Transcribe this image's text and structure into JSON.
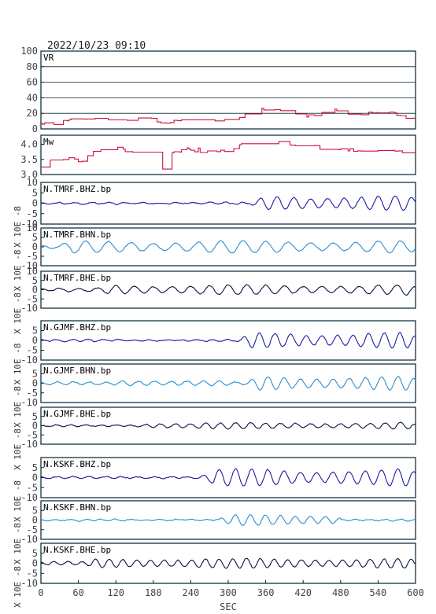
{
  "header": {
    "timestamp": "2022/10/23 09:10"
  },
  "chart_data": {
    "type": "line",
    "xlabel": "SEC",
    "x_ticks": [
      "0",
      "60",
      "120",
      "180",
      "240",
      "300",
      "360",
      "420",
      "480",
      "540",
      "600"
    ],
    "xlim": [
      0,
      600
    ],
    "y_unit_label": "X 10E -8",
    "colors": {
      "summary": "#cc1144",
      "bhz": "#1a1aa0",
      "bhn": "#2a8fd0",
      "bhe": "#101040",
      "frame": "#002233"
    },
    "panels": [
      {
        "name": "VR",
        "kind": "summary",
        "color": "#cc1144",
        "ylim": [
          0,
          100
        ],
        "y_ticks": [
          "100",
          "80",
          "60",
          "40",
          "20",
          "0"
        ],
        "grid": true,
        "series_points": [
          [
            0,
            7
          ],
          [
            20,
            7
          ],
          [
            40,
            12
          ],
          [
            70,
            14
          ],
          [
            100,
            13
          ],
          [
            130,
            11
          ],
          [
            150,
            12
          ],
          [
            175,
            13
          ],
          [
            200,
            8
          ],
          [
            220,
            12
          ],
          [
            260,
            13
          ],
          [
            290,
            11
          ],
          [
            320,
            16
          ],
          [
            345,
            21
          ],
          [
            360,
            27
          ],
          [
            380,
            24
          ],
          [
            400,
            18
          ],
          [
            430,
            17
          ],
          [
            460,
            21
          ],
          [
            470,
            24
          ],
          [
            500,
            19
          ],
          [
            540,
            21
          ],
          [
            560,
            22
          ],
          [
            580,
            16
          ],
          [
            600,
            13
          ]
        ],
        "noise": 2.0
      },
      {
        "name": "Mw",
        "kind": "summary",
        "color": "#cc1144",
        "ylim": [
          3.0,
          4.3
        ],
        "y_ticks": [
          "4.0",
          "3.5",
          "3.0"
        ],
        "grid": false,
        "series_points": [
          [
            0,
            3.25
          ],
          [
            10,
            3.5
          ],
          [
            30,
            3.55
          ],
          [
            60,
            3.45
          ],
          [
            90,
            3.75
          ],
          [
            120,
            3.85
          ],
          [
            150,
            3.8
          ],
          [
            180,
            3.7
          ],
          [
            195,
            3.2
          ],
          [
            200,
            3.65
          ],
          [
            230,
            3.8
          ],
          [
            260,
            3.8
          ],
          [
            290,
            3.8
          ],
          [
            320,
            3.95
          ],
          [
            345,
            4.05
          ],
          [
            360,
            4.15
          ],
          [
            390,
            4.0
          ],
          [
            420,
            3.95
          ],
          [
            460,
            3.85
          ],
          [
            500,
            3.85
          ],
          [
            540,
            3.75
          ],
          [
            570,
            3.75
          ],
          [
            600,
            3.55
          ]
        ],
        "noise": 0.08
      },
      {
        "name": "N.TMRF.BHZ.bp",
        "kind": "wave",
        "color": "#1a1aa0",
        "ylim": [
          -10,
          10
        ],
        "y_ticks": [
          "10",
          "5",
          "0",
          "-5",
          "-10"
        ],
        "seed": 11,
        "noise_amp": 0.4,
        "period": 27,
        "bursts": [
          [
            330,
            600,
            3.5
          ]
        ]
      },
      {
        "name": "N.TMRF.BHN.bp",
        "kind": "wave",
        "color": "#2a8fd0",
        "ylim": [
          -10,
          10
        ],
        "y_ticks": [
          "10",
          "5",
          "0",
          "-5",
          "-10"
        ],
        "seed": 22,
        "noise_amp": 1.0,
        "period": 36,
        "bursts": [
          [
            20,
            600,
            3.2
          ],
          [
            60,
            140,
            2.5
          ]
        ]
      },
      {
        "name": "N.TMRF.BHE.bp",
        "kind": "wave",
        "color": "#101040",
        "ylim": [
          -10,
          10
        ],
        "y_ticks": [
          "10",
          "5",
          "0",
          "-5",
          "-10"
        ],
        "seed": 33,
        "noise_amp": 0.8,
        "period": 30,
        "bursts": [
          [
            80,
            600,
            2.6
          ],
          [
            430,
            520,
            1.5
          ]
        ]
      },
      {
        "name": "N.GJMF.BHZ.bp",
        "kind": "wave",
        "color": "#1a1aa0",
        "ylim": [
          -10,
          10
        ],
        "y_ticks": [
          "5",
          "0",
          "-5",
          "-10"
        ],
        "seed": 44,
        "noise_amp": 0.5,
        "period": 25,
        "bursts": [
          [
            310,
            600,
            4.0
          ]
        ]
      },
      {
        "name": "N.GJMF.BHN.bp",
        "kind": "wave",
        "color": "#2a8fd0",
        "ylim": [
          -10,
          10
        ],
        "y_ticks": [
          "5",
          "0",
          "-5",
          "-10"
        ],
        "seed": 55,
        "noise_amp": 0.7,
        "period": 26,
        "bursts": [
          [
            100,
            300,
            1.5
          ],
          [
            320,
            600,
            3.6
          ]
        ]
      },
      {
        "name": "N.GJMF.BHE.bp",
        "kind": "wave",
        "color": "#101040",
        "ylim": [
          -10,
          10
        ],
        "y_ticks": [
          "5",
          "0",
          "-5",
          "-10"
        ],
        "seed": 66,
        "noise_amp": 0.4,
        "period": 24,
        "bursts": [
          [
            140,
            600,
            1.6
          ]
        ]
      },
      {
        "name": "N.KSKF.BHZ.bp",
        "kind": "wave",
        "color": "#1a1aa0",
        "ylim": [
          -10,
          10
        ],
        "y_ticks": [
          "5",
          "0",
          "-5",
          "-10"
        ],
        "seed": 77,
        "noise_amp": 0.5,
        "period": 26,
        "bursts": [
          [
            250,
            600,
            4.2
          ]
        ]
      },
      {
        "name": "N.KSKF.BHN.bp",
        "kind": "wave",
        "color": "#2a8fd0",
        "ylim": [
          -10,
          10
        ],
        "y_ticks": [
          "5",
          "0",
          "-5",
          "-10"
        ],
        "seed": 88,
        "noise_amp": 0.4,
        "period": 24,
        "bursts": [
          [
            280,
            480,
            2.8
          ]
        ]
      },
      {
        "name": "N.KSKF.BHE.bp",
        "kind": "wave",
        "color": "#101040",
        "ylim": [
          -10,
          10
        ],
        "y_ticks": [
          "5",
          "0",
          "-5",
          "-10"
        ],
        "seed": 99,
        "noise_amp": 0.8,
        "period": 22,
        "bursts": [
          [
            60,
            600,
            2.4
          ],
          [
            580,
            600,
            4.0
          ]
        ]
      }
    ]
  }
}
